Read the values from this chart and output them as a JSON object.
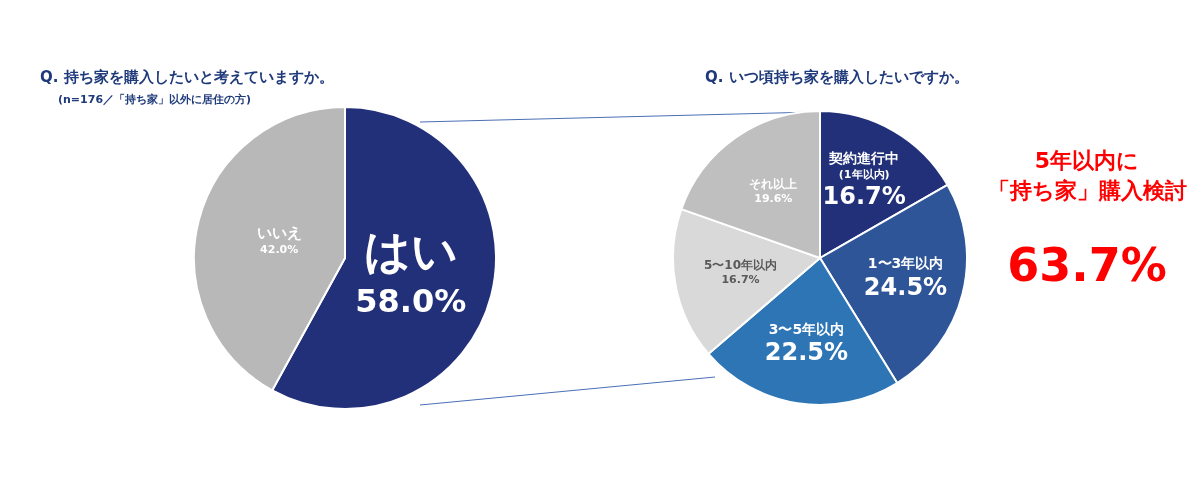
{
  "chart_data": [
    {
      "type": "pie",
      "title": "Q. 持ち家を購入したいと考えていますか。",
      "subtitle": "(n=176／「持ち家」以外に居住の方)",
      "categories": [
        "はい",
        "いいえ"
      ],
      "values": [
        58.0,
        42.0
      ],
      "colors": [
        "#22307a",
        "#b8b8b8"
      ],
      "value_labels": [
        "58.0%",
        "42.0%"
      ],
      "legend": false
    },
    {
      "type": "pie",
      "title": "Q. いつ頃持ち家を購入したいですか。",
      "categories": [
        "契約進行中\n(1年以内)",
        "1〜3年以内",
        "3〜5年以内",
        "5〜10年以内",
        "それ以上"
      ],
      "values": [
        16.7,
        24.5,
        22.5,
        16.7,
        19.6
      ],
      "colors": [
        "#22307a",
        "#2e5597",
        "#2e75b6",
        "#d9d9d9",
        "#bfbfbf"
      ],
      "value_labels": [
        "16.7%",
        "24.5%",
        "22.5%",
        "16.7%",
        "19.6%"
      ],
      "legend": false,
      "annotations": [
        "5年以内に",
        "「持ち家」購入検討",
        "63.7%"
      ]
    }
  ]
}
